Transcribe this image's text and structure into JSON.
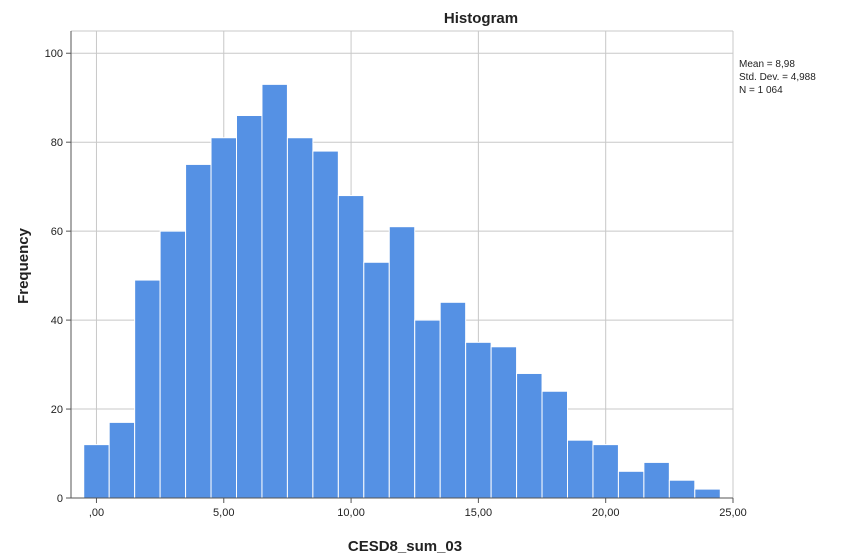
{
  "chart_data": {
    "type": "bar",
    "subtype": "histogram",
    "title": "Histogram",
    "xlabel": "CESD8_sum_03",
    "ylabel": "Frequency",
    "xlim": [
      -1,
      25
    ],
    "ylim": [
      0,
      105
    ],
    "bin_width": 1,
    "bins": [
      {
        "x": 0,
        "count": 12
      },
      {
        "x": 1,
        "count": 17
      },
      {
        "x": 2,
        "count": 49
      },
      {
        "x": 3,
        "count": 60
      },
      {
        "x": 4,
        "count": 75
      },
      {
        "x": 5,
        "count": 81
      },
      {
        "x": 6,
        "count": 86
      },
      {
        "x": 7,
        "count": 93
      },
      {
        "x": 8,
        "count": 81
      },
      {
        "x": 9,
        "count": 78
      },
      {
        "x": 10,
        "count": 68
      },
      {
        "x": 11,
        "count": 53
      },
      {
        "x": 12,
        "count": 61
      },
      {
        "x": 13,
        "count": 40
      },
      {
        "x": 14,
        "count": 44
      },
      {
        "x": 15,
        "count": 35
      },
      {
        "x": 16,
        "count": 34
      },
      {
        "x": 17,
        "count": 28
      },
      {
        "x": 18,
        "count": 24
      },
      {
        "x": 19,
        "count": 13
      },
      {
        "x": 20,
        "count": 12
      },
      {
        "x": 21,
        "count": 6
      },
      {
        "x": 22,
        "count": 8
      },
      {
        "x": 23,
        "count": 4
      },
      {
        "x": 24,
        "count": 2
      }
    ],
    "x_ticks": [
      {
        "value": 0,
        "label": ",00"
      },
      {
        "value": 5,
        "label": "5,00"
      },
      {
        "value": 10,
        "label": "10,00"
      },
      {
        "value": 15,
        "label": "15,00"
      },
      {
        "value": 20,
        "label": "20,00"
      },
      {
        "value": 25,
        "label": "25,00"
      }
    ],
    "y_ticks": [
      {
        "value": 0,
        "label": "0"
      },
      {
        "value": 20,
        "label": "20"
      },
      {
        "value": 40,
        "label": "40"
      },
      {
        "value": 60,
        "label": "60"
      },
      {
        "value": 80,
        "label": "80"
      },
      {
        "value": 100,
        "label": "100"
      }
    ],
    "grid": true,
    "bar_color": "#5591e4",
    "stats": {
      "placement": "top-right",
      "lines": [
        "Mean = 8,98",
        "Std. Dev. = 4,988",
        "N = 1 064"
      ]
    }
  }
}
